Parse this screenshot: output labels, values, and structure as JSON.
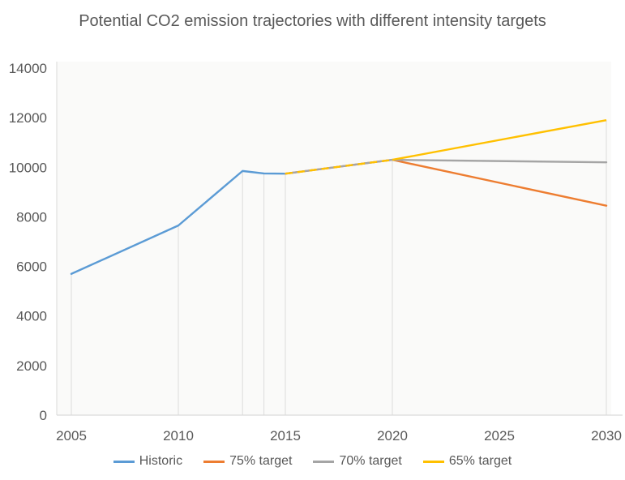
{
  "chart_data": {
    "type": "line",
    "title": "Potential CO2 emission trajectories with different intensity targets",
    "xlabel": "",
    "ylabel": "",
    "xlim": [
      2005,
      2030
    ],
    "ylim": [
      0,
      14000
    ],
    "x_ticks": [
      2005,
      2010,
      2015,
      2020,
      2025,
      2030
    ],
    "y_ticks": [
      0,
      2000,
      4000,
      6000,
      8000,
      10000,
      12000,
      14000
    ],
    "grid": "vertical droplines at data points only",
    "droplines_x": [
      2005,
      2010,
      2013,
      2014,
      2015,
      2020,
      2030
    ],
    "legend_position": "bottom-center",
    "series": [
      {
        "name": "Historic",
        "color": "#5B9BD5",
        "x": [
          2005,
          2010,
          2013,
          2014,
          2015
        ],
        "values": [
          5700,
          7650,
          9850,
          9750,
          9740
        ]
      },
      {
        "name": "75% target",
        "color": "#ED7D31",
        "x": [
          2015,
          2020,
          2030
        ],
        "values": [
          9740,
          10300,
          8450
        ]
      },
      {
        "name": "70% target",
        "color": "#A5A5A5",
        "x": [
          2015,
          2020,
          2030
        ],
        "values": [
          9740,
          10300,
          10200
        ]
      },
      {
        "name": "65% target",
        "color": "#FFC000",
        "x": [
          2015,
          2020,
          2030
        ],
        "values": [
          9740,
          10300,
          11900
        ],
        "dashed_segment": [
          2015,
          2020
        ]
      }
    ]
  },
  "colors": {
    "text": "#595959",
    "axis_line": "#d9d9d9",
    "dropline": "#dcdcdc",
    "plot_bg": "#fafaf9",
    "background": "#ffffff"
  }
}
